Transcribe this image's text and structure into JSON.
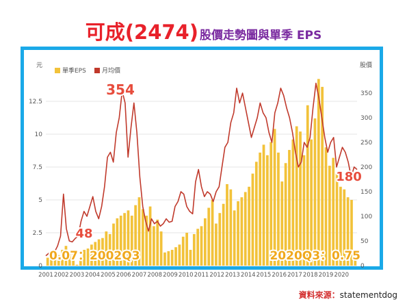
{
  "title": {
    "main": "可成(2474)",
    "sub": "股價走勢圖與單季 EPS"
  },
  "source": {
    "label": "資料來源：",
    "name": "statementdog"
  },
  "chart_data": {
    "type": "bar+line",
    "left_axis": {
      "label": "元",
      "ticks": [
        "0",
        "2.5",
        "5",
        "7.5",
        "10",
        "12.5"
      ],
      "range": [
        0,
        15
      ]
    },
    "right_axis": {
      "label": "股價",
      "ticks": [
        "0",
        "50",
        "100",
        "150",
        "200",
        "250",
        "300",
        "350"
      ],
      "range": [
        0,
        400
      ]
    },
    "x_ticks": [
      "2001",
      "2002",
      "2003",
      "2004",
      "2005",
      "2006",
      "2007",
      "2008",
      "2009",
      "2010",
      "2011",
      "2012",
      "2013",
      "2014",
      "2015",
      "2016",
      "2017",
      "2018",
      "2019",
      "2020"
    ],
    "legend": [
      {
        "name": "單季EPS",
        "color": "#f2c23a"
      },
      {
        "name": "月均價",
        "color": "#c0392b"
      }
    ],
    "legend_position": "top-left",
    "grid": true,
    "series": [
      {
        "name": "單季EPS",
        "type": "bar",
        "axis": "left",
        "color": "#f2c23a",
        "values": [
          0.6,
          0.9,
          1.0,
          0.8,
          1.2,
          1.5,
          1.0,
          0.9,
          0.07,
          0.5,
          1.2,
          1.3,
          1.6,
          1.8,
          2.0,
          2.1,
          2.6,
          2.4,
          3.2,
          3.6,
          3.8,
          4.0,
          4.2,
          3.8,
          4.6,
          5.2,
          4.3,
          3.8,
          4.5,
          3.0,
          3.5,
          2.6,
          1.0,
          1.1,
          1.2,
          1.4,
          1.6,
          2.2,
          2.5,
          1.2,
          2.4,
          2.8,
          3.0,
          3.6,
          4.4,
          5.0,
          3.2,
          4.0,
          4.7,
          6.2,
          5.8,
          4.2,
          4.9,
          5.2,
          5.6,
          6.0,
          7.0,
          7.9,
          8.6,
          9.2,
          8.4,
          9.4,
          10.4,
          8.6,
          6.4,
          7.8,
          8.8,
          9.6,
          10.6,
          10.2,
          8.4,
          12.2,
          9.6,
          11.2,
          14.2,
          13.6,
          9.0,
          7.6,
          8.2,
          7.0,
          6.0,
          5.8,
          5.2,
          5.0,
          0.75
        ]
      },
      {
        "name": "月均價",
        "type": "line",
        "axis": "right",
        "color": "#c0392b",
        "values": [
          20,
          25,
          30,
          28,
          40,
          60,
          145,
          75,
          50,
          48,
          55,
          60,
          90,
          110,
          100,
          120,
          140,
          110,
          95,
          120,
          160,
          220,
          230,
          210,
          270,
          300,
          354,
          330,
          220,
          280,
          330,
          270,
          180,
          120,
          90,
          70,
          95,
          85,
          90,
          80,
          85,
          95,
          88,
          90,
          120,
          130,
          150,
          145,
          120,
          110,
          105,
          170,
          195,
          160,
          140,
          150,
          145,
          130,
          150,
          160,
          200,
          240,
          250,
          290,
          310,
          360,
          330,
          350,
          320,
          290,
          260,
          280,
          300,
          330,
          310,
          300,
          270,
          250,
          310,
          330,
          360,
          345,
          320,
          300,
          270,
          230,
          200,
          210,
          250,
          240,
          260,
          320,
          370,
          340,
          300,
          260,
          230,
          250,
          260,
          200,
          220,
          240,
          230,
          210,
          180,
          200,
          195
        ]
      }
    ],
    "annotations": [
      "354",
      "48",
      "0.07：2002Q3",
      "2020Q3：0.75",
      "180"
    ]
  }
}
